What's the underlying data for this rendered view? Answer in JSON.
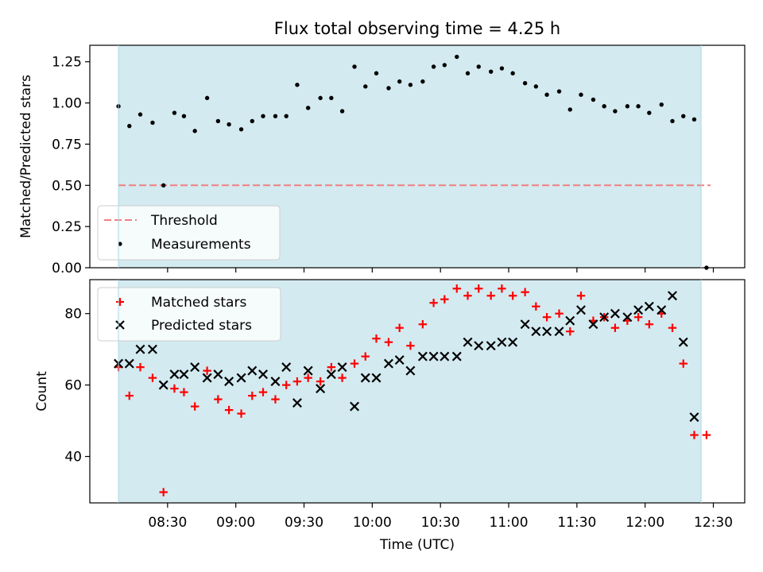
{
  "chart_data": {
    "type": "scatter",
    "title": "Flux total observing time = 4.25 h",
    "xlabel": "Time (UTC)",
    "x_ticks": [
      "08:30",
      "09:00",
      "09:30",
      "10:00",
      "10:30",
      "11:00",
      "11:30",
      "12:00",
      "12:30"
    ],
    "x_tick_hours": [
      8.5,
      9.0,
      9.5,
      10.0,
      10.5,
      11.0,
      11.5,
      12.0,
      12.5
    ],
    "xlim_hours": [
      7.93,
      12.73
    ],
    "shade_hours": [
      8.14,
      12.41
    ],
    "shade_color": "#d3eaf0",
    "top": {
      "ylabel": "Matched/Predicted stars",
      "ylim": [
        0,
        1.35
      ],
      "y_ticks": [
        "0.00",
        "0.25",
        "0.50",
        "0.75",
        "1.00",
        "1.25"
      ],
      "y_tick_values": [
        0,
        0.25,
        0.5,
        0.75,
        1.0,
        1.25
      ],
      "threshold": {
        "label": "Threshold",
        "value": 0.5,
        "color": "#f08080",
        "x_range": [
          8.14,
          12.48
        ]
      },
      "measurements_label": "Measurements",
      "measurements": [
        [
          8.14,
          0.98
        ],
        [
          8.22,
          0.86
        ],
        [
          8.3,
          0.93
        ],
        [
          8.39,
          0.88
        ],
        [
          8.47,
          0.5
        ],
        [
          8.55,
          0.94
        ],
        [
          8.62,
          0.92
        ],
        [
          8.7,
          0.83
        ],
        [
          8.79,
          1.03
        ],
        [
          8.87,
          0.89
        ],
        [
          8.95,
          0.87
        ],
        [
          9.04,
          0.84
        ],
        [
          9.12,
          0.89
        ],
        [
          9.2,
          0.92
        ],
        [
          9.29,
          0.92
        ],
        [
          9.37,
          0.92
        ],
        [
          9.45,
          1.11
        ],
        [
          9.53,
          0.97
        ],
        [
          9.62,
          1.03
        ],
        [
          9.7,
          1.03
        ],
        [
          9.78,
          0.95
        ],
        [
          9.87,
          1.22
        ],
        [
          9.95,
          1.1
        ],
        [
          10.03,
          1.18
        ],
        [
          10.12,
          1.09
        ],
        [
          10.2,
          1.13
        ],
        [
          10.28,
          1.11
        ],
        [
          10.37,
          1.13
        ],
        [
          10.45,
          1.22
        ],
        [
          10.53,
          1.23
        ],
        [
          10.62,
          1.28
        ],
        [
          10.7,
          1.18
        ],
        [
          10.78,
          1.22
        ],
        [
          10.87,
          1.19
        ],
        [
          10.95,
          1.21
        ],
        [
          11.03,
          1.18
        ],
        [
          11.12,
          1.12
        ],
        [
          11.2,
          1.1
        ],
        [
          11.28,
          1.05
        ],
        [
          11.37,
          1.07
        ],
        [
          11.45,
          0.96
        ],
        [
          11.53,
          1.05
        ],
        [
          11.62,
          1.02
        ],
        [
          11.7,
          0.98
        ],
        [
          11.78,
          0.95
        ],
        [
          11.87,
          0.98
        ],
        [
          11.95,
          0.98
        ],
        [
          12.03,
          0.94
        ],
        [
          12.12,
          0.99
        ],
        [
          12.2,
          0.89
        ],
        [
          12.28,
          0.92
        ],
        [
          12.36,
          0.9
        ],
        [
          12.45,
          0.0
        ]
      ]
    },
    "bottom": {
      "ylabel": "Count",
      "ylim": [
        27,
        89.5
      ],
      "y_ticks": [
        "40",
        "60",
        "80"
      ],
      "y_tick_values": [
        40,
        60,
        80
      ],
      "series": [
        {
          "name": "Matched stars",
          "marker": "+",
          "color": "#ff0000",
          "points": [
            [
              8.14,
              65
            ],
            [
              8.22,
              57
            ],
            [
              8.3,
              65
            ],
            [
              8.39,
              62
            ],
            [
              8.47,
              30
            ],
            [
              8.55,
              59
            ],
            [
              8.62,
              58
            ],
            [
              8.7,
              54
            ],
            [
              8.79,
              64
            ],
            [
              8.87,
              56
            ],
            [
              8.95,
              53
            ],
            [
              9.04,
              52
            ],
            [
              9.12,
              57
            ],
            [
              9.2,
              58
            ],
            [
              9.29,
              56
            ],
            [
              9.37,
              60
            ],
            [
              9.45,
              61
            ],
            [
              9.53,
              62
            ],
            [
              9.62,
              61
            ],
            [
              9.7,
              65
            ],
            [
              9.78,
              62
            ],
            [
              9.87,
              66
            ],
            [
              9.95,
              68
            ],
            [
              10.03,
              73
            ],
            [
              10.12,
              72
            ],
            [
              10.2,
              76
            ],
            [
              10.28,
              71
            ],
            [
              10.37,
              77
            ],
            [
              10.45,
              83
            ],
            [
              10.53,
              84
            ],
            [
              10.62,
              87
            ],
            [
              10.7,
              85
            ],
            [
              10.78,
              87
            ],
            [
              10.87,
              85
            ],
            [
              10.95,
              87
            ],
            [
              11.03,
              85
            ],
            [
              11.12,
              86
            ],
            [
              11.2,
              82
            ],
            [
              11.28,
              79
            ],
            [
              11.37,
              80
            ],
            [
              11.45,
              75
            ],
            [
              11.53,
              85
            ],
            [
              11.62,
              78
            ],
            [
              11.7,
              79
            ],
            [
              11.78,
              76
            ],
            [
              11.87,
              78
            ],
            [
              11.95,
              79
            ],
            [
              12.03,
              77
            ],
            [
              12.12,
              80
            ],
            [
              12.2,
              76
            ],
            [
              12.28,
              66
            ],
            [
              12.36,
              46
            ],
            [
              12.45,
              46
            ]
          ]
        },
        {
          "name": "Predicted stars",
          "marker": "x",
          "color": "#000000",
          "points": [
            [
              8.14,
              66
            ],
            [
              8.22,
              66
            ],
            [
              8.3,
              70
            ],
            [
              8.39,
              70
            ],
            [
              8.47,
              60
            ],
            [
              8.55,
              63
            ],
            [
              8.62,
              63
            ],
            [
              8.7,
              65
            ],
            [
              8.79,
              62
            ],
            [
              8.87,
              63
            ],
            [
              8.95,
              61
            ],
            [
              9.04,
              62
            ],
            [
              9.12,
              64
            ],
            [
              9.2,
              63
            ],
            [
              9.29,
              61
            ],
            [
              9.37,
              65
            ],
            [
              9.45,
              55
            ],
            [
              9.53,
              64
            ],
            [
              9.62,
              59
            ],
            [
              9.7,
              63
            ],
            [
              9.78,
              65
            ],
            [
              9.87,
              54
            ],
            [
              9.95,
              62
            ],
            [
              10.03,
              62
            ],
            [
              10.12,
              66
            ],
            [
              10.2,
              67
            ],
            [
              10.28,
              64
            ],
            [
              10.37,
              68
            ],
            [
              10.45,
              68
            ],
            [
              10.53,
              68
            ],
            [
              10.62,
              68
            ],
            [
              10.7,
              72
            ],
            [
              10.78,
              71
            ],
            [
              10.87,
              71
            ],
            [
              10.95,
              72
            ],
            [
              11.03,
              72
            ],
            [
              11.12,
              77
            ],
            [
              11.2,
              75
            ],
            [
              11.28,
              75
            ],
            [
              11.37,
              75
            ],
            [
              11.45,
              78
            ],
            [
              11.53,
              81
            ],
            [
              11.62,
              77
            ],
            [
              11.7,
              79
            ],
            [
              11.78,
              80
            ],
            [
              11.87,
              79
            ],
            [
              11.95,
              81
            ],
            [
              12.03,
              82
            ],
            [
              12.12,
              81
            ],
            [
              12.2,
              85
            ],
            [
              12.28,
              72
            ],
            [
              12.36,
              51
            ]
          ]
        }
      ]
    }
  }
}
